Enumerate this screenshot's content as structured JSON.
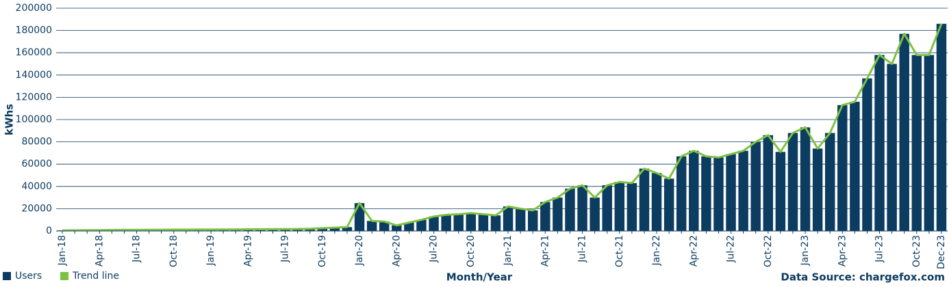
{
  "chart_data": {
    "type": "bar",
    "x_label": "Month/Year",
    "y_label": "kWhs",
    "source": "Data Source:  chargefox.com",
    "categories": [
      "Jan-18",
      null,
      null,
      "Apr-18",
      null,
      null,
      "Jul-18",
      null,
      null,
      "Oct-18",
      null,
      null,
      "Jan-19",
      null,
      null,
      "Apr-19",
      null,
      null,
      "Jul-19",
      null,
      null,
      "Oct-19",
      null,
      null,
      "Jan-20",
      null,
      null,
      "Apr-20",
      null,
      null,
      "Jul-20",
      null,
      null,
      "Oct-20",
      null,
      null,
      "Jan-21",
      null,
      null,
      "Apr-21",
      null,
      null,
      "Jul-21",
      null,
      null,
      "Oct-21",
      null,
      null,
      "Jan-22",
      null,
      null,
      "Apr-22",
      null,
      null,
      "Jul-22",
      null,
      null,
      "Oct-22",
      null,
      null,
      "Jan-23",
      null,
      null,
      "Apr-23",
      null,
      null,
      "Jul-23",
      null,
      null,
      "Oct-23",
      null,
      "Dec-23"
    ],
    "series": [
      {
        "name": "Users",
        "color": "#0d3c61",
        "values": [
          500,
          600,
          700,
          800,
          900,
          1000,
          1000,
          1100,
          1100,
          1200,
          1200,
          1300,
          1300,
          1400,
          1400,
          1500,
          1500,
          1600,
          1700,
          1800,
          2000,
          2500,
          3000,
          3500,
          25000,
          9000,
          8500,
          5000,
          7500,
          10000,
          13000,
          14500,
          15000,
          16000,
          15000,
          14000,
          22000,
          20000,
          18500,
          26000,
          30000,
          38000,
          41000,
          30000,
          41000,
          44000,
          43000,
          56000,
          52000,
          47000,
          67000,
          72000,
          67000,
          66000,
          69000,
          72000,
          80000,
          86000,
          71000,
          88000,
          93000,
          74000,
          88000,
          113000,
          116000,
          137000,
          158000,
          150000,
          177000,
          158000,
          158000,
          186000
        ]
      },
      {
        "name": "Trend line",
        "color": "#7dc242",
        "type": "line",
        "values": [
          500,
          600,
          700,
          800,
          900,
          1000,
          1000,
          1100,
          1100,
          1200,
          1200,
          1300,
          1300,
          1400,
          1400,
          1500,
          1500,
          1600,
          1700,
          1800,
          2000,
          2500,
          3000,
          3500,
          25000,
          9000,
          8500,
          5000,
          7500,
          10000,
          13000,
          14500,
          15000,
          16000,
          15000,
          14000,
          22000,
          20000,
          18500,
          26000,
          30000,
          38000,
          41000,
          30000,
          41000,
          44000,
          43000,
          56000,
          52000,
          47000,
          67000,
          72000,
          67000,
          66000,
          69000,
          72000,
          80000,
          86000,
          71000,
          88000,
          93000,
          74000,
          88000,
          113000,
          116000,
          137000,
          158000,
          150000,
          177000,
          158000,
          158000,
          186000
        ]
      }
    ],
    "ylim": [
      0,
      200000
    ],
    "yticks": [
      0,
      20000,
      40000,
      60000,
      80000,
      100000,
      120000,
      140000,
      160000,
      180000,
      200000
    ],
    "grid": true,
    "legend": "bottom-left"
  }
}
